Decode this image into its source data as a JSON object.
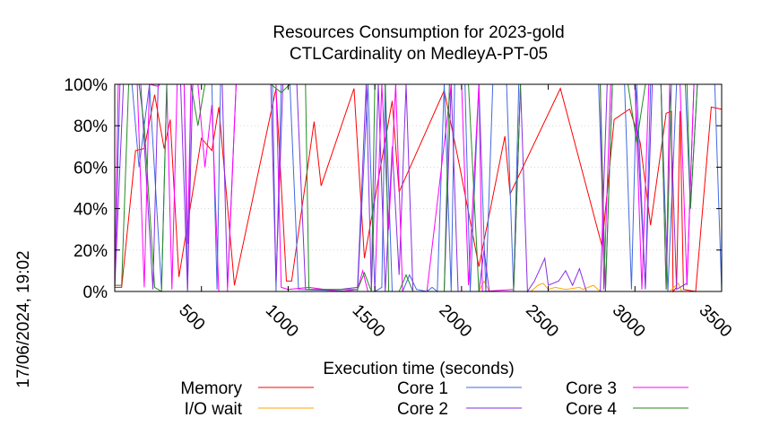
{
  "chart_data": {
    "type": "line",
    "title": "Resources Consumption for 2023-gold",
    "subtitle": "CTLCardinality on MedleyA-PT-05",
    "xlabel": "Execution time (seconds)",
    "ylabel": "",
    "timestamp": "17/06/2024, 19:02",
    "xlim": [
      0,
      3500
    ],
    "ylim": [
      0,
      100
    ],
    "x_ticks": [
      "500",
      "1000",
      "1500",
      "2000",
      "2500",
      "3000",
      "3500"
    ],
    "y_ticks": [
      "0%",
      "20%",
      "40%",
      "60%",
      "80%",
      "100%"
    ],
    "legend_position": "bottom",
    "series": [
      {
        "name": "Memory",
        "color": "#ff0000",
        "points": [
          [
            0,
            2
          ],
          [
            40,
            2
          ],
          [
            120,
            68
          ],
          [
            170,
            69
          ],
          [
            230,
            95
          ],
          [
            285,
            69
          ],
          [
            320,
            83
          ],
          [
            370,
            7
          ],
          [
            500,
            74
          ],
          [
            560,
            68
          ],
          [
            600,
            89
          ],
          [
            690,
            3
          ],
          [
            930,
            98
          ],
          [
            990,
            5
          ],
          [
            1020,
            5
          ],
          [
            1150,
            82
          ],
          [
            1190,
            51
          ],
          [
            1380,
            98
          ],
          [
            1440,
            16
          ],
          [
            1600,
            92
          ],
          [
            1640,
            48
          ],
          [
            1900,
            97
          ],
          [
            1990,
            60
          ],
          [
            2100,
            12
          ],
          [
            2250,
            75
          ],
          [
            2280,
            47
          ],
          [
            2570,
            98
          ],
          [
            2810,
            22
          ],
          [
            2880,
            83
          ],
          [
            2950,
            87
          ],
          [
            2970,
            88
          ],
          [
            3030,
            72
          ],
          [
            3090,
            32
          ],
          [
            3180,
            86
          ],
          [
            3210,
            87
          ],
          [
            3220,
            0
          ],
          [
            3240,
            2
          ],
          [
            3260,
            87
          ],
          [
            3280,
            1
          ],
          [
            3350,
            0
          ],
          [
            3440,
            89
          ],
          [
            3500,
            88
          ]
        ]
      },
      {
        "name": "I/O wait",
        "color": "#ffa500",
        "points": [
          [
            0,
            0
          ],
          [
            1200,
            0
          ],
          [
            1300,
            0
          ],
          [
            1500,
            0
          ],
          [
            1800,
            0
          ],
          [
            2000,
            0
          ],
          [
            2100,
            0
          ],
          [
            2130,
            5
          ],
          [
            2160,
            0
          ],
          [
            2400,
            0
          ],
          [
            2440,
            3
          ],
          [
            2470,
            4
          ],
          [
            2500,
            1
          ],
          [
            2540,
            2
          ],
          [
            2600,
            1
          ],
          [
            2680,
            2
          ],
          [
            2700,
            1
          ],
          [
            2760,
            3
          ],
          [
            2800,
            0
          ],
          [
            3200,
            0
          ],
          [
            3250,
            4
          ],
          [
            3270,
            0
          ],
          [
            3500,
            0
          ]
        ]
      },
      {
        "name": "Core 1",
        "color": "#4169e1",
        "points": [
          [
            0,
            2
          ],
          [
            30,
            100
          ],
          [
            100,
            100
          ],
          [
            140,
            60
          ],
          [
            200,
            100
          ],
          [
            270,
            1
          ],
          [
            300,
            100
          ],
          [
            400,
            100
          ],
          [
            420,
            0
          ],
          [
            440,
            100
          ],
          [
            560,
            100
          ],
          [
            590,
            1
          ],
          [
            610,
            100
          ],
          [
            910,
            100
          ],
          [
            930,
            0
          ],
          [
            960,
            100
          ],
          [
            1010,
            100
          ],
          [
            1060,
            1
          ],
          [
            1400,
            0
          ],
          [
            1460,
            100
          ],
          [
            1500,
            0
          ],
          [
            1540,
            2
          ],
          [
            1560,
            100
          ],
          [
            1600,
            0
          ],
          [
            1660,
            0
          ],
          [
            1700,
            8
          ],
          [
            1740,
            1
          ],
          [
            1800,
            0
          ],
          [
            1830,
            2
          ],
          [
            1860,
            0
          ],
          [
            1900,
            100
          ],
          [
            1940,
            0
          ],
          [
            1960,
            100
          ],
          [
            2020,
            100
          ],
          [
            2050,
            0
          ],
          [
            2100,
            100
          ],
          [
            2140,
            0
          ],
          [
            2180,
            100
          ],
          [
            2260,
            100
          ],
          [
            2300,
            0
          ],
          [
            2330,
            100
          ],
          [
            2790,
            100
          ],
          [
            2830,
            0
          ],
          [
            2870,
            100
          ],
          [
            2940,
            100
          ],
          [
            2980,
            1
          ],
          [
            3010,
            100
          ],
          [
            3060,
            1
          ],
          [
            3090,
            100
          ],
          [
            3150,
            100
          ],
          [
            3190,
            0
          ],
          [
            3240,
            100
          ],
          [
            3290,
            100
          ],
          [
            3320,
            40
          ],
          [
            3360,
            100
          ],
          [
            3460,
            100
          ],
          [
            3500,
            0
          ]
        ]
      },
      {
        "name": "Core 2",
        "color": "#8a2be2",
        "points": [
          [
            0,
            2
          ],
          [
            50,
            100
          ],
          [
            150,
            100
          ],
          [
            220,
            1
          ],
          [
            250,
            100
          ],
          [
            380,
            100
          ],
          [
            420,
            1
          ],
          [
            450,
            100
          ],
          [
            620,
            100
          ],
          [
            650,
            2
          ],
          [
            700,
            100
          ],
          [
            900,
            100
          ],
          [
            930,
            5
          ],
          [
            970,
            100
          ],
          [
            1050,
            100
          ],
          [
            1100,
            1
          ],
          [
            1300,
            1
          ],
          [
            1400,
            2
          ],
          [
            1450,
            100
          ],
          [
            1480,
            1
          ],
          [
            1520,
            100
          ],
          [
            1560,
            0
          ],
          [
            1600,
            70
          ],
          [
            1640,
            8
          ],
          [
            1680,
            100
          ],
          [
            1720,
            0
          ],
          [
            1900,
            0
          ],
          [
            1940,
            100
          ],
          [
            1980,
            0
          ],
          [
            2100,
            0
          ],
          [
            2130,
            20
          ],
          [
            2160,
            0
          ],
          [
            2300,
            0
          ],
          [
            2340,
            100
          ],
          [
            2380,
            0
          ],
          [
            2420,
            5
          ],
          [
            2480,
            16
          ],
          [
            2500,
            3
          ],
          [
            2560,
            5
          ],
          [
            2600,
            10
          ],
          [
            2640,
            3
          ],
          [
            2680,
            11
          ],
          [
            2720,
            0
          ],
          [
            2800,
            0
          ],
          [
            2840,
            100
          ],
          [
            3000,
            100
          ],
          [
            3060,
            2
          ],
          [
            3100,
            100
          ],
          [
            3200,
            100
          ],
          [
            3240,
            1
          ],
          [
            3300,
            4
          ],
          [
            3340,
            100
          ],
          [
            3500,
            100
          ]
        ]
      },
      {
        "name": "Core 3",
        "color": "#ff00ff",
        "points": [
          [
            0,
            1
          ],
          [
            20,
            100
          ],
          [
            130,
            100
          ],
          [
            170,
            2
          ],
          [
            200,
            100
          ],
          [
            250,
            99
          ],
          [
            260,
            100
          ],
          [
            300,
            100
          ],
          [
            330,
            1
          ],
          [
            360,
            100
          ],
          [
            400,
            100
          ],
          [
            420,
            23
          ],
          [
            440,
            100
          ],
          [
            480,
            100
          ],
          [
            520,
            60
          ],
          [
            560,
            90
          ],
          [
            600,
            0
          ],
          [
            650,
            0
          ],
          [
            700,
            100
          ],
          [
            930,
            100
          ],
          [
            960,
            2
          ],
          [
            1000,
            1
          ],
          [
            1120,
            2
          ],
          [
            1300,
            0
          ],
          [
            1400,
            1
          ],
          [
            1430,
            10
          ],
          [
            1460,
            0
          ],
          [
            1500,
            0
          ],
          [
            1540,
            100
          ],
          [
            1580,
            30
          ],
          [
            1620,
            100
          ],
          [
            1660,
            0
          ],
          [
            1800,
            0
          ],
          [
            1940,
            100
          ],
          [
            2000,
            100
          ],
          [
            2040,
            3
          ],
          [
            2100,
            100
          ],
          [
            2120,
            0
          ],
          [
            2300,
            1
          ],
          [
            2340,
            100
          ],
          [
            2800,
            100
          ],
          [
            2820,
            1
          ],
          [
            2860,
            100
          ],
          [
            3000,
            100
          ],
          [
            3040,
            1
          ],
          [
            3080,
            100
          ],
          [
            3150,
            100
          ],
          [
            3180,
            1
          ],
          [
            3200,
            100
          ],
          [
            3260,
            100
          ],
          [
            3300,
            3
          ],
          [
            3340,
            100
          ],
          [
            3500,
            100
          ]
        ]
      },
      {
        "name": "Core 4",
        "color": "#228b22",
        "points": [
          [
            0,
            3
          ],
          [
            40,
            3
          ],
          [
            80,
            100
          ],
          [
            140,
            100
          ],
          [
            170,
            80
          ],
          [
            230,
            2
          ],
          [
            270,
            0
          ],
          [
            300,
            100
          ],
          [
            440,
            100
          ],
          [
            480,
            80
          ],
          [
            520,
            100
          ],
          [
            900,
            100
          ],
          [
            960,
            96
          ],
          [
            1010,
            100
          ],
          [
            1100,
            100
          ],
          [
            1120,
            1
          ],
          [
            1400,
            1
          ],
          [
            1440,
            9
          ],
          [
            1480,
            0
          ],
          [
            1500,
            100
          ],
          [
            1560,
            100
          ],
          [
            1580,
            0
          ],
          [
            1640,
            0
          ],
          [
            1680,
            8
          ],
          [
            1720,
            0
          ],
          [
            1900,
            0
          ],
          [
            1930,
            100
          ],
          [
            2040,
            100
          ],
          [
            2100,
            0
          ],
          [
            2300,
            0
          ],
          [
            2340,
            100
          ],
          [
            2800,
            100
          ],
          [
            2830,
            0
          ],
          [
            2870,
            100
          ],
          [
            2960,
            100
          ],
          [
            3010,
            72
          ],
          [
            3060,
            100
          ],
          [
            3150,
            100
          ],
          [
            3180,
            1
          ],
          [
            3210,
            100
          ],
          [
            3300,
            100
          ],
          [
            3320,
            40
          ],
          [
            3360,
            100
          ],
          [
            3500,
            100
          ]
        ]
      }
    ]
  }
}
